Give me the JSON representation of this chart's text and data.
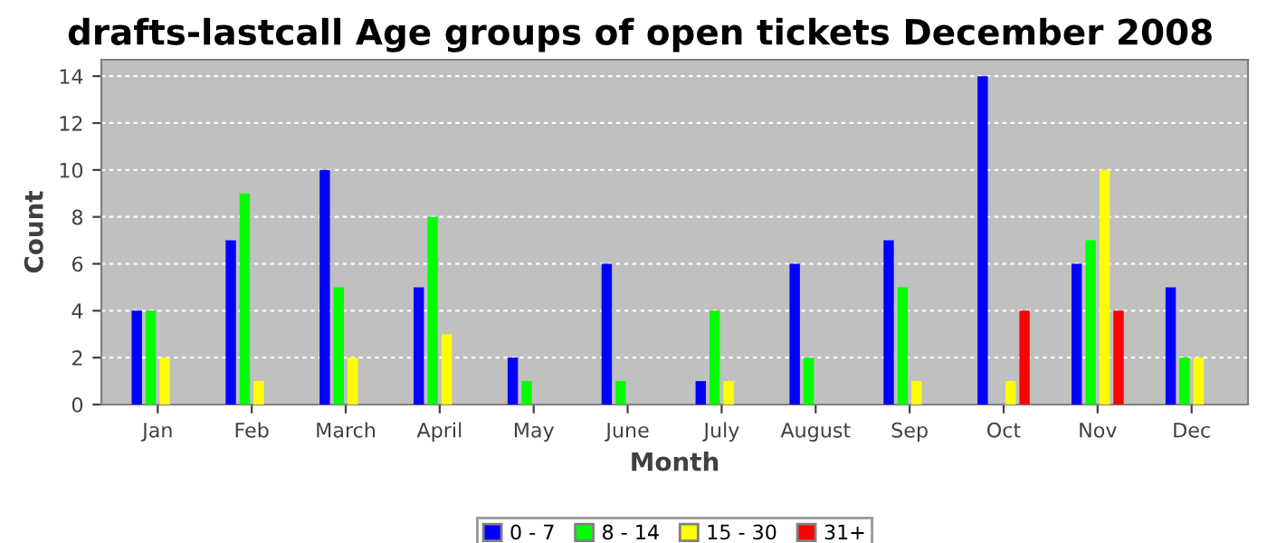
{
  "chart_data": {
    "type": "bar",
    "title": "drafts-lastcall Age groups of open tickets December 2008",
    "xlabel": "Month",
    "ylabel": "Count",
    "categories": [
      "Jan",
      "Feb",
      "March",
      "April",
      "May",
      "June",
      "July",
      "August",
      "Sep",
      "Oct",
      "Nov",
      "Dec"
    ],
    "series": [
      {
        "name": "0 - 7",
        "color": "#0000ff",
        "values": [
          4,
          7,
          10,
          5,
          2,
          6,
          1,
          6,
          7,
          14,
          6,
          5
        ]
      },
      {
        "name": "8 - 14",
        "color": "#00ff00",
        "values": [
          4,
          9,
          5,
          8,
          1,
          1,
          4,
          2,
          5,
          null,
          7,
          2
        ]
      },
      {
        "name": "15 - 30",
        "color": "#ffff00",
        "values": [
          2,
          1,
          2,
          3,
          null,
          null,
          1,
          null,
          1,
          1,
          10,
          2
        ]
      },
      {
        "name": "31+",
        "color": "#ff0000",
        "values": [
          null,
          null,
          null,
          null,
          null,
          null,
          null,
          null,
          null,
          4,
          4,
          null
        ]
      }
    ],
    "ylim": [
      0,
      14.7
    ],
    "yticks": [
      0,
      2,
      4,
      6,
      8,
      10,
      12,
      14
    ],
    "grid": "y",
    "legend": "bottom"
  }
}
